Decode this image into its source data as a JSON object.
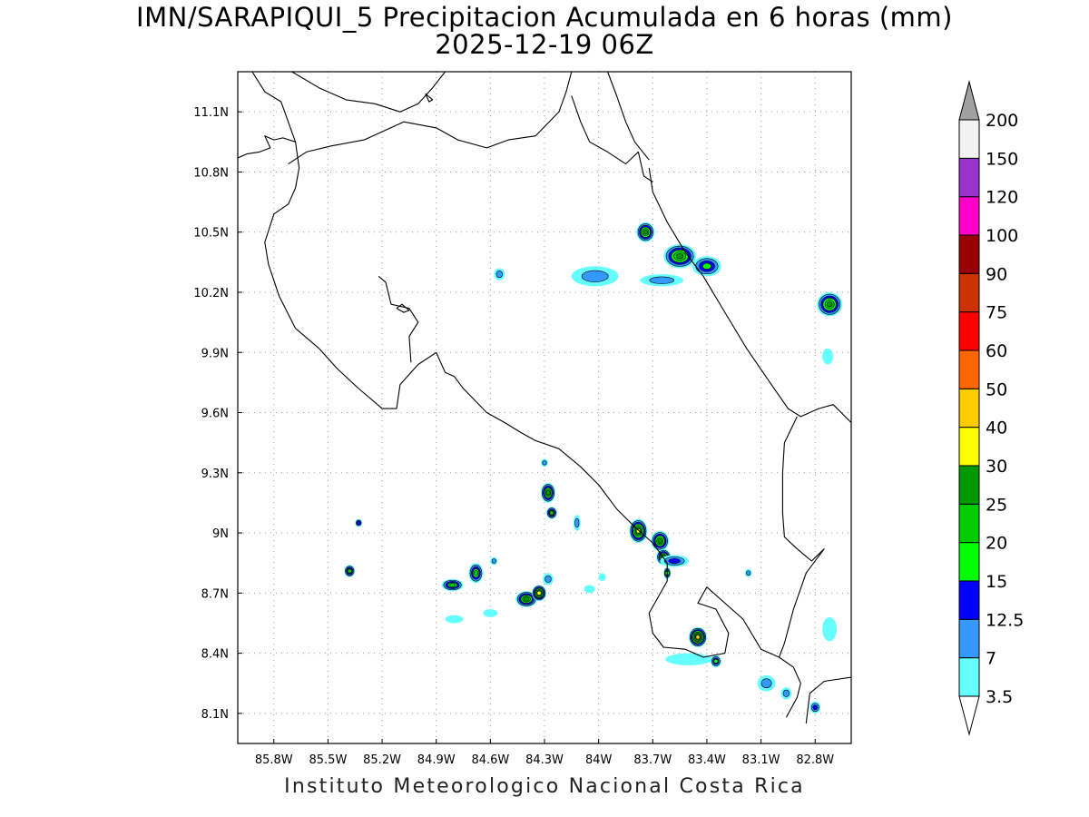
{
  "title": "IMN/SARAPIQUI_5 Precipitacion Acumulada en 6 horas (mm)",
  "subtitle": "2025-12-19 06Z",
  "credit": "Instituto Meteorologico Nacional Costa Rica",
  "map": {
    "lon_range": [
      -86.0,
      -82.6
    ],
    "lat_range": [
      7.95,
      11.3
    ],
    "lon_ticks": [
      "85.8W",
      "85.5W",
      "85.2W",
      "84.9W",
      "84.6W",
      "84.3W",
      "84W",
      "83.7W",
      "83.4W",
      "83.1W",
      "82.8W"
    ],
    "lat_ticks": [
      "11.1N",
      "10.8N",
      "10.5N",
      "10.2N",
      "9.9N",
      "9.6N",
      "9.3N",
      "9N",
      "8.7N",
      "8.4N",
      "8.1N"
    ],
    "grid": true
  },
  "colorbar": {
    "levels": [
      "3.5",
      "7",
      "12.5",
      "15",
      "20",
      "25",
      "30",
      "40",
      "50",
      "60",
      "75",
      "90",
      "100",
      "120",
      "150",
      "200"
    ],
    "colors": [
      "#66ffff",
      "#3399ff",
      "#0000ff",
      "#00ff00",
      "#00cc00",
      "#009900",
      "#ffff00",
      "#ffcc00",
      "#ff6600",
      "#ff0000",
      "#cc3300",
      "#990000",
      "#ff00cc",
      "#9933cc",
      "#f2f2f2",
      "#a0a0a0"
    ],
    "extend": "both"
  },
  "precip_cells": [
    {
      "lon": -83.74,
      "lat": 10.5,
      "rx": 0.05,
      "ry": 0.05,
      "max_level": 5
    },
    {
      "lon": -83.55,
      "lat": 10.38,
      "rx": 0.09,
      "ry": 0.06,
      "max_level": 5
    },
    {
      "lon": -83.4,
      "lat": 10.33,
      "rx": 0.08,
      "ry": 0.05,
      "max_level": 3
    },
    {
      "lon": -84.02,
      "lat": 10.28,
      "rx": 0.13,
      "ry": 0.05,
      "max_level": 1
    },
    {
      "lon": -83.65,
      "lat": 10.26,
      "rx": 0.12,
      "ry": 0.03,
      "max_level": 1
    },
    {
      "lon": -84.55,
      "lat": 10.29,
      "rx": 0.03,
      "ry": 0.03,
      "max_level": 1
    },
    {
      "lon": -82.72,
      "lat": 10.14,
      "rx": 0.07,
      "ry": 0.06,
      "max_level": 5
    },
    {
      "lon": -82.73,
      "lat": 9.88,
      "rx": 0.03,
      "ry": 0.04,
      "max_level": 0
    },
    {
      "lon": -84.28,
      "lat": 9.2,
      "rx": 0.04,
      "ry": 0.05,
      "max_level": 5
    },
    {
      "lon": -84.26,
      "lat": 9.1,
      "rx": 0.03,
      "ry": 0.03,
      "max_level": 4
    },
    {
      "lon": -84.12,
      "lat": 9.05,
      "rx": 0.02,
      "ry": 0.04,
      "max_level": 1
    },
    {
      "lon": -84.3,
      "lat": 9.35,
      "rx": 0.02,
      "ry": 0.02,
      "max_level": 1
    },
    {
      "lon": -83.78,
      "lat": 9.01,
      "rx": 0.05,
      "ry": 0.06,
      "max_level": 6
    },
    {
      "lon": -83.66,
      "lat": 8.96,
      "rx": 0.05,
      "ry": 0.05,
      "max_level": 5
    },
    {
      "lon": -83.64,
      "lat": 8.88,
      "rx": 0.04,
      "ry": 0.04,
      "max_level": 5
    },
    {
      "lon": -83.58,
      "lat": 8.86,
      "rx": 0.08,
      "ry": 0.03,
      "max_level": 2
    },
    {
      "lon": -83.62,
      "lat": 8.8,
      "rx": 0.02,
      "ry": 0.03,
      "max_level": 3
    },
    {
      "lon": -84.4,
      "lat": 8.67,
      "rx": 0.06,
      "ry": 0.04,
      "max_level": 5
    },
    {
      "lon": -84.33,
      "lat": 8.7,
      "rx": 0.04,
      "ry": 0.04,
      "max_level": 6
    },
    {
      "lon": -84.28,
      "lat": 8.77,
      "rx": 0.03,
      "ry": 0.03,
      "max_level": 1
    },
    {
      "lon": -84.81,
      "lat": 8.74,
      "rx": 0.06,
      "ry": 0.03,
      "max_level": 4
    },
    {
      "lon": -84.68,
      "lat": 8.8,
      "rx": 0.04,
      "ry": 0.05,
      "max_level": 4
    },
    {
      "lon": -85.38,
      "lat": 8.81,
      "rx": 0.03,
      "ry": 0.03,
      "max_level": 4
    },
    {
      "lon": -85.33,
      "lat": 9.05,
      "rx": 0.02,
      "ry": 0.02,
      "max_level": 2
    },
    {
      "lon": -84.58,
      "lat": 8.86,
      "rx": 0.02,
      "ry": 0.02,
      "max_level": 1
    },
    {
      "lon": -84.6,
      "lat": 8.6,
      "rx": 0.04,
      "ry": 0.02,
      "max_level": 0
    },
    {
      "lon": -84.8,
      "lat": 8.57,
      "rx": 0.05,
      "ry": 0.02,
      "max_level": 0
    },
    {
      "lon": -84.05,
      "lat": 8.72,
      "rx": 0.03,
      "ry": 0.02,
      "max_level": 0
    },
    {
      "lon": -83.98,
      "lat": 8.78,
      "rx": 0.02,
      "ry": 0.02,
      "max_level": 0
    },
    {
      "lon": -83.45,
      "lat": 8.48,
      "rx": 0.05,
      "ry": 0.05,
      "max_level": 7
    },
    {
      "lon": -83.5,
      "lat": 8.37,
      "rx": 0.13,
      "ry": 0.03,
      "max_level": 0
    },
    {
      "lon": -83.35,
      "lat": 8.36,
      "rx": 0.03,
      "ry": 0.03,
      "max_level": 3
    },
    {
      "lon": -83.07,
      "lat": 8.25,
      "rx": 0.05,
      "ry": 0.04,
      "max_level": 1
    },
    {
      "lon": -82.96,
      "lat": 8.2,
      "rx": 0.03,
      "ry": 0.03,
      "max_level": 1
    },
    {
      "lon": -82.8,
      "lat": 8.13,
      "rx": 0.03,
      "ry": 0.03,
      "max_level": 2
    },
    {
      "lon": -82.72,
      "lat": 8.52,
      "rx": 0.04,
      "ry": 0.06,
      "max_level": 0
    },
    {
      "lon": -83.17,
      "lat": 8.8,
      "rx": 0.02,
      "ry": 0.02,
      "max_level": 1
    }
  ],
  "coastlines": [
    [
      [
        -85.92,
        11.3
      ],
      [
        -85.85,
        11.2
      ],
      [
        -85.76,
        11.15
      ],
      [
        -85.7,
        11.0
      ],
      [
        -85.68,
        10.95
      ],
      [
        -85.75,
        10.97
      ],
      [
        -85.8,
        10.96
      ],
      [
        -85.85,
        10.98
      ],
      [
        -85.82,
        10.92
      ],
      [
        -85.88,
        10.9
      ],
      [
        -85.95,
        10.89
      ],
      [
        -86.0,
        10.87
      ]
    ],
    [
      [
        -85.68,
        10.95
      ],
      [
        -85.66,
        10.82
      ],
      [
        -85.68,
        10.72
      ],
      [
        -85.72,
        10.64
      ],
      [
        -85.8,
        10.59
      ],
      [
        -85.85,
        10.45
      ],
      [
        -85.83,
        10.34
      ],
      [
        -85.77,
        10.18
      ],
      [
        -85.68,
        10.02
      ],
      [
        -85.55,
        9.92
      ],
      [
        -85.45,
        9.82
      ],
      [
        -85.33,
        9.72
      ],
      [
        -85.2,
        9.62
      ],
      [
        -85.12,
        9.62
      ],
      [
        -85.1,
        9.74
      ],
      [
        -85.0,
        9.84
      ],
      [
        -84.9,
        9.9
      ],
      [
        -84.85,
        9.8
      ],
      [
        -84.8,
        9.78
      ],
      [
        -84.75,
        9.72
      ],
      [
        -84.62,
        9.6
      ],
      [
        -84.52,
        9.55
      ],
      [
        -84.43,
        9.5
      ],
      [
        -84.35,
        9.46
      ],
      [
        -84.22,
        9.42
      ],
      [
        -84.1,
        9.33
      ],
      [
        -84.0,
        9.24
      ],
      [
        -83.9,
        9.12
      ],
      [
        -83.8,
        9.03
      ],
      [
        -83.7,
        8.95
      ],
      [
        -83.62,
        8.85
      ],
      [
        -83.62,
        8.76
      ],
      [
        -83.72,
        8.6
      ],
      [
        -83.7,
        8.5
      ],
      [
        -83.64,
        8.43
      ],
      [
        -83.52,
        8.42
      ],
      [
        -83.42,
        8.38
      ],
      [
        -83.3,
        8.4
      ],
      [
        -83.28,
        8.5
      ],
      [
        -83.35,
        8.62
      ],
      [
        -83.45,
        8.65
      ],
      [
        -83.4,
        8.73
      ],
      [
        -83.2,
        8.57
      ],
      [
        -83.1,
        8.42
      ],
      [
        -83.0,
        8.38
      ],
      [
        -82.92,
        8.33
      ],
      [
        -82.88,
        8.25
      ],
      [
        -82.9,
        8.18
      ],
      [
        -82.96,
        8.08
      ]
    ],
    [
      [
        -85.04,
        9.85
      ],
      [
        -85.05,
        9.98
      ],
      [
        -85.0,
        10.05
      ],
      [
        -85.05,
        10.12
      ],
      [
        -85.15,
        10.14
      ],
      [
        -85.18,
        10.25
      ],
      [
        -85.22,
        10.28
      ]
    ],
    [
      [
        -85.12,
        10.12
      ],
      [
        -85.08,
        10.1
      ],
      [
        -85.05,
        10.11
      ],
      [
        -85.09,
        10.14
      ],
      [
        -85.12,
        10.12
      ]
    ],
    [
      [
        -85.72,
        10.84
      ],
      [
        -85.62,
        10.9
      ],
      [
        -85.48,
        10.93
      ],
      [
        -85.3,
        10.96
      ],
      [
        -85.08,
        11.05
      ],
      [
        -84.9,
        11.02
      ],
      [
        -84.78,
        10.96
      ],
      [
        -84.62,
        10.92
      ],
      [
        -84.5,
        10.96
      ],
      [
        -84.35,
        10.98
      ],
      [
        -84.22,
        11.1
      ],
      [
        -84.18,
        11.2
      ],
      [
        -84.15,
        11.3
      ]
    ],
    [
      [
        -85.7,
        11.3
      ],
      [
        -85.55,
        11.22
      ],
      [
        -85.4,
        11.16
      ],
      [
        -85.24,
        11.14
      ],
      [
        -85.1,
        11.1
      ],
      [
        -85.0,
        11.14
      ],
      [
        -84.92,
        11.22
      ],
      [
        -84.85,
        11.3
      ]
    ],
    [
      [
        -84.15,
        11.18
      ],
      [
        -84.1,
        11.05
      ],
      [
        -84.05,
        10.95
      ],
      [
        -83.95,
        10.9
      ],
      [
        -83.85,
        10.84
      ],
      [
        -83.78,
        10.9
      ],
      [
        -83.75,
        10.78
      ],
      [
        -83.7,
        10.75
      ]
    ],
    [
      [
        -83.72,
        10.82
      ],
      [
        -83.7,
        10.7
      ],
      [
        -83.62,
        10.55
      ],
      [
        -83.52,
        10.4
      ],
      [
        -83.42,
        10.28
      ],
      [
        -83.3,
        10.1
      ],
      [
        -83.18,
        9.92
      ],
      [
        -83.05,
        9.75
      ],
      [
        -82.95,
        9.62
      ],
      [
        -82.88,
        9.58
      ],
      [
        -82.78,
        9.62
      ],
      [
        -82.7,
        9.64
      ],
      [
        -82.6,
        9.55
      ]
    ],
    [
      [
        -83.95,
        11.3
      ],
      [
        -83.9,
        11.18
      ],
      [
        -83.85,
        11.05
      ],
      [
        -83.8,
        10.95
      ],
      [
        -83.72,
        10.86
      ]
    ],
    [
      [
        -82.9,
        9.58
      ],
      [
        -82.97,
        9.45
      ],
      [
        -82.98,
        9.3
      ],
      [
        -82.98,
        9.2
      ],
      [
        -82.98,
        9.1
      ],
      [
        -82.97,
        8.98
      ],
      [
        -82.9,
        8.92
      ],
      [
        -82.82,
        8.86
      ],
      [
        -82.75,
        8.92
      ],
      [
        -82.85,
        8.8
      ],
      [
        -82.92,
        8.62
      ],
      [
        -82.97,
        8.45
      ],
      [
        -83.0,
        8.38
      ]
    ],
    [
      [
        -82.85,
        8.05
      ],
      [
        -82.83,
        8.2
      ],
      [
        -82.75,
        8.26
      ],
      [
        -82.6,
        8.28
      ]
    ],
    [
      [
        -84.96,
        11.19
      ],
      [
        -84.94,
        11.15
      ],
      [
        -84.92,
        11.16
      ],
      [
        -84.96,
        11.19
      ]
    ]
  ]
}
